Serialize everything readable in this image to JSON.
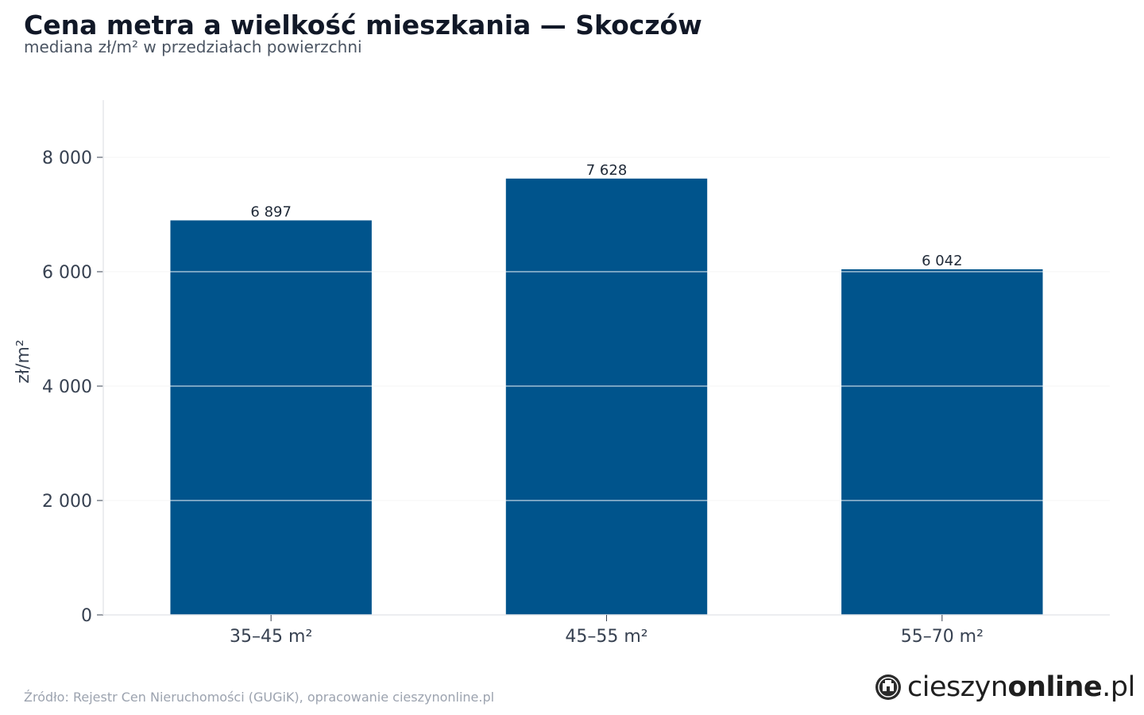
{
  "header": {
    "title": "Cena metra a wielkość mieszkania — Skoczów",
    "subtitle": "mediana zł/m² w przedziałach powierzchni"
  },
  "chart_data": {
    "type": "bar",
    "categories": [
      "35–45 m²",
      "45–55 m²",
      "55–70 m²"
    ],
    "values": [
      6897,
      7628,
      6042
    ],
    "value_labels": [
      "6 897",
      "7 628",
      "6 042"
    ],
    "ylabel": "zł/m²",
    "ylim": [
      0,
      9000
    ],
    "yticks": [
      0,
      2000,
      4000,
      6000,
      8000
    ],
    "ytick_labels": [
      "0",
      "2 000",
      "4 000",
      "6 000",
      "8 000"
    ],
    "grid": true,
    "bar_color": "#00548c"
  },
  "footer": {
    "source": "Źródło: Rejestr Cen Nieruchomości (GUGiK), opracowanie cieszynonline.pl",
    "logo_light": "cieszyn",
    "logo_bold": "online",
    "logo_suffix": ".pl"
  }
}
